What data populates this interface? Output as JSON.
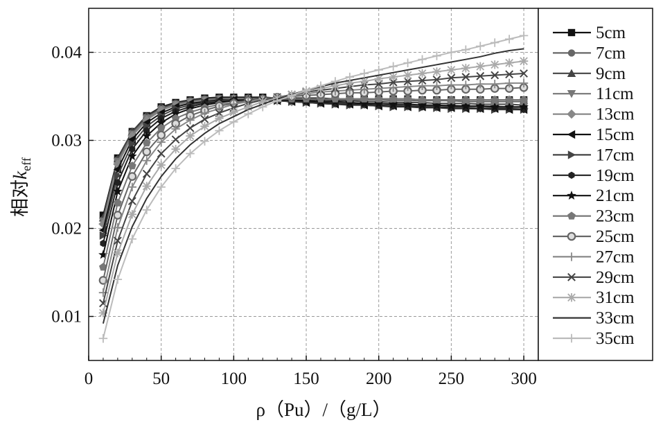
{
  "chart_data": {
    "type": "line",
    "title": "",
    "xlabel": "ρ（Pu）/（g/L）",
    "ylabel": "相对k_eff",
    "ylabel_main": "相对",
    "ylabel_k": "k",
    "ylabel_sub": "eff",
    "xlim": [
      0,
      310
    ],
    "ylim": [
      0.005,
      0.045
    ],
    "xticks": [
      0,
      50,
      100,
      150,
      200,
      250,
      300
    ],
    "yticks": [
      0.01,
      0.02,
      0.03,
      0.04
    ],
    "xtick_labels": [
      "0",
      "50",
      "100",
      "150",
      "200",
      "250",
      "300"
    ],
    "ytick_labels": [
      "0.01",
      "0.02",
      "0.03",
      "0.04"
    ],
    "grid": true,
    "legend_position": "right",
    "x": [
      10,
      20,
      30,
      40,
      50,
      60,
      70,
      80,
      90,
      100,
      110,
      120,
      130,
      140,
      150,
      160,
      170,
      180,
      190,
      200,
      210,
      220,
      230,
      240,
      250,
      260,
      270,
      280,
      290,
      300
    ],
    "series": [
      {
        "name": "5cm",
        "marker": "square",
        "color": "#111111",
        "values": [
          0.0215,
          0.028,
          0.031,
          0.0328,
          0.0338,
          0.0343,
          0.0346,
          0.0348,
          0.0349,
          0.0349,
          0.0349,
          0.0349,
          0.0348,
          0.0348,
          0.0348,
          0.0348,
          0.0347,
          0.0347,
          0.0347,
          0.0347,
          0.0347,
          0.0347,
          0.0346,
          0.0346,
          0.0346,
          0.0346,
          0.0346,
          0.0346,
          0.0346,
          0.0346
        ]
      },
      {
        "name": "7cm",
        "marker": "circle",
        "color": "#666666",
        "values": [
          0.021,
          0.0278,
          0.0309,
          0.0327,
          0.0337,
          0.0342,
          0.0345,
          0.0347,
          0.0348,
          0.0348,
          0.0348,
          0.0348,
          0.0348,
          0.0347,
          0.0347,
          0.0347,
          0.0346,
          0.0346,
          0.0346,
          0.0346,
          0.0345,
          0.0345,
          0.0345,
          0.0345,
          0.0345,
          0.0344,
          0.0344,
          0.0344,
          0.0344,
          0.0344
        ]
      },
      {
        "name": "9cm",
        "marker": "triangle-up",
        "color": "#444444",
        "values": [
          0.0212,
          0.0279,
          0.031,
          0.0327,
          0.0337,
          0.0342,
          0.0345,
          0.0347,
          0.0348,
          0.0348,
          0.0348,
          0.0348,
          0.0347,
          0.0347,
          0.0346,
          0.0346,
          0.0345,
          0.0345,
          0.0344,
          0.0344,
          0.0343,
          0.0343,
          0.0343,
          0.0342,
          0.0342,
          0.0342,
          0.0341,
          0.0341,
          0.0341,
          0.034
        ]
      },
      {
        "name": "11cm",
        "marker": "triangle-down",
        "color": "#777777",
        "values": [
          0.0208,
          0.0276,
          0.0307,
          0.0325,
          0.0335,
          0.0341,
          0.0344,
          0.0346,
          0.0347,
          0.0347,
          0.0347,
          0.0346,
          0.0346,
          0.0345,
          0.0344,
          0.0344,
          0.0343,
          0.0343,
          0.0342,
          0.0342,
          0.0341,
          0.0341,
          0.034,
          0.034,
          0.034,
          0.0339,
          0.0339,
          0.0339,
          0.0338,
          0.0338
        ]
      },
      {
        "name": "13cm",
        "marker": "diamond",
        "color": "#888888",
        "values": [
          0.0205,
          0.0273,
          0.0305,
          0.0323,
          0.0334,
          0.034,
          0.0343,
          0.0345,
          0.0346,
          0.0347,
          0.0347,
          0.0346,
          0.0345,
          0.0344,
          0.0344,
          0.0343,
          0.0342,
          0.0341,
          0.0341,
          0.034,
          0.034,
          0.0339,
          0.0339,
          0.0338,
          0.0338,
          0.0338,
          0.0337,
          0.0337,
          0.0337,
          0.0336
        ]
      },
      {
        "name": "15cm",
        "marker": "triangle-left",
        "color": "#111111",
        "values": [
          0.0198,
          0.0267,
          0.0301,
          0.032,
          0.0331,
          0.0338,
          0.0342,
          0.0344,
          0.0346,
          0.0346,
          0.0346,
          0.0346,
          0.0345,
          0.0344,
          0.0343,
          0.0342,
          0.0341,
          0.0341,
          0.034,
          0.0339,
          0.0339,
          0.0338,
          0.0338,
          0.0337,
          0.0337,
          0.0336,
          0.0336,
          0.0336,
          0.0335,
          0.0335
        ]
      },
      {
        "name": "17cm",
        "marker": "triangle-right",
        "color": "#444444",
        "values": [
          0.0192,
          0.026,
          0.0296,
          0.0316,
          0.0328,
          0.0336,
          0.034,
          0.0343,
          0.0345,
          0.0346,
          0.0346,
          0.0346,
          0.0345,
          0.0344,
          0.0343,
          0.0342,
          0.0341,
          0.034,
          0.034,
          0.0339,
          0.0338,
          0.0338,
          0.0337,
          0.0337,
          0.0336,
          0.0336,
          0.0336,
          0.0335,
          0.0335,
          0.0335
        ]
      },
      {
        "name": "19cm",
        "marker": "hexagon",
        "color": "#222222",
        "values": [
          0.0183,
          0.0252,
          0.029,
          0.0311,
          0.0325,
          0.0333,
          0.0338,
          0.0342,
          0.0344,
          0.0345,
          0.0346,
          0.0346,
          0.0346,
          0.0345,
          0.0344,
          0.0343,
          0.0342,
          0.0341,
          0.0341,
          0.034,
          0.0339,
          0.0339,
          0.0338,
          0.0338,
          0.0337,
          0.0337,
          0.0336,
          0.0336,
          0.0336,
          0.0335
        ]
      },
      {
        "name": "21cm",
        "marker": "star",
        "color": "#111111",
        "values": [
          0.017,
          0.0242,
          0.0282,
          0.0305,
          0.032,
          0.033,
          0.0336,
          0.034,
          0.0343,
          0.0345,
          0.0346,
          0.0346,
          0.0346,
          0.0346,
          0.0345,
          0.0344,
          0.0344,
          0.0343,
          0.0342,
          0.0342,
          0.0341,
          0.0341,
          0.034,
          0.034,
          0.0339,
          0.0339,
          0.0339,
          0.0338,
          0.0338,
          0.0338
        ]
      },
      {
        "name": "23cm",
        "marker": "pentagon",
        "color": "#777777",
        "values": [
          0.0156,
          0.0229,
          0.0271,
          0.0297,
          0.0314,
          0.0325,
          0.0332,
          0.0337,
          0.0341,
          0.0343,
          0.0345,
          0.0346,
          0.0347,
          0.0347,
          0.0347,
          0.0347,
          0.0347,
          0.0347,
          0.0347,
          0.0347,
          0.0347,
          0.0347,
          0.0346,
          0.0346,
          0.0346,
          0.0346,
          0.0346,
          0.0346,
          0.0346,
          0.0346
        ]
      },
      {
        "name": "25cm",
        "marker": "ball",
        "color": "#666666",
        "values": [
          0.0141,
          0.0215,
          0.0259,
          0.0287,
          0.0306,
          0.0319,
          0.0328,
          0.0334,
          0.0339,
          0.0342,
          0.0345,
          0.0347,
          0.0349,
          0.035,
          0.0351,
          0.0352,
          0.0353,
          0.0354,
          0.0354,
          0.0355,
          0.0356,
          0.0356,
          0.0357,
          0.0357,
          0.0358,
          0.0358,
          0.0358,
          0.0359,
          0.0359,
          0.036
        ]
      },
      {
        "name": "27cm",
        "marker": "plus",
        "color": "#888888",
        "values": [
          0.0127,
          0.0201,
          0.0247,
          0.0277,
          0.0298,
          0.0313,
          0.0323,
          0.0331,
          0.0336,
          0.0341,
          0.0344,
          0.0347,
          0.0349,
          0.0351,
          0.0353,
          0.0355,
          0.0356,
          0.0357,
          0.0358,
          0.0359,
          0.036,
          0.0361,
          0.0362,
          0.0362,
          0.0363,
          0.0363,
          0.0364,
          0.0364,
          0.0365,
          0.0365
        ]
      },
      {
        "name": "29cm",
        "marker": "x",
        "color": "#444444",
        "values": [
          0.0115,
          0.0186,
          0.0231,
          0.0262,
          0.0285,
          0.0301,
          0.0314,
          0.0324,
          0.0331,
          0.0337,
          0.0342,
          0.0346,
          0.0349,
          0.0352,
          0.0355,
          0.0357,
          0.0359,
          0.0361,
          0.0363,
          0.0364,
          0.0366,
          0.0367,
          0.0368,
          0.0369,
          0.0371,
          0.0372,
          0.0373,
          0.0374,
          0.0375,
          0.0376
        ]
      },
      {
        "name": "31cm",
        "marker": "asterisk",
        "color": "#aaaaaa",
        "values": [
          0.0104,
          0.0172,
          0.0216,
          0.0248,
          0.0272,
          0.029,
          0.0305,
          0.0316,
          0.0325,
          0.0332,
          0.0338,
          0.0344,
          0.0348,
          0.0352,
          0.0356,
          0.0359,
          0.0362,
          0.0365,
          0.0367,
          0.037,
          0.0372,
          0.0374,
          0.0376,
          0.0378,
          0.038,
          0.0382,
          0.0384,
          0.0386,
          0.0388,
          0.039
        ]
      },
      {
        "name": "33cm",
        "marker": "none",
        "color": "#333333",
        "values": [
          0.0092,
          0.0158,
          0.0202,
          0.0234,
          0.0259,
          0.0279,
          0.0295,
          0.0308,
          0.0319,
          0.0327,
          0.0335,
          0.0341,
          0.0347,
          0.0352,
          0.0357,
          0.0361,
          0.0365,
          0.0368,
          0.0371,
          0.0374,
          0.0377,
          0.038,
          0.0383,
          0.0386,
          0.0389,
          0.0392,
          0.0395,
          0.0399,
          0.0402,
          0.0404
        ]
      },
      {
        "name": "35cm",
        "marker": "plus",
        "color": "#bbbbbb",
        "values": [
          0.0075,
          0.0142,
          0.0188,
          0.0221,
          0.0247,
          0.0268,
          0.0285,
          0.0299,
          0.0311,
          0.0321,
          0.033,
          0.0338,
          0.0345,
          0.0351,
          0.0357,
          0.0362,
          0.0367,
          0.0372,
          0.0376,
          0.038,
          0.0384,
          0.0388,
          0.0392,
          0.0396,
          0.04,
          0.0403,
          0.0407,
          0.0411,
          0.0415,
          0.0419
        ]
      }
    ]
  }
}
